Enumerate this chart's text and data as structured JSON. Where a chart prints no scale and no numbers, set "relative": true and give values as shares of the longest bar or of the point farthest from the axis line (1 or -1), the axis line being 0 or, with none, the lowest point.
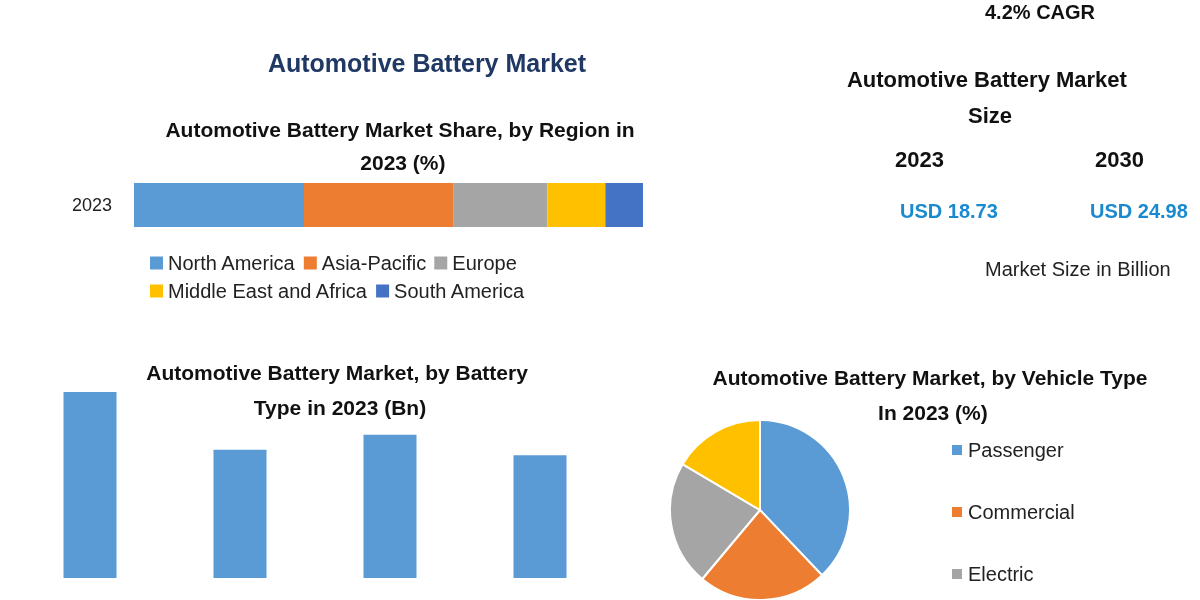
{
  "chart_data": [
    {
      "type": "bar",
      "title": "Automotive Battery Market",
      "subtitle": "Automotive Battery Market Share, by Region in 2023 (%)",
      "orientation": "horizontal",
      "stacked": true,
      "relative": true,
      "categories": [
        "2023"
      ],
      "legend": "bottom",
      "series": [
        {
          "name": "North America",
          "color": "#5b9bd5",
          "values": [
            0.334
          ]
        },
        {
          "name": "Asia-Pacific",
          "color": "#ed7d31",
          "values": [
            0.293
          ]
        },
        {
          "name": "Europe",
          "color": "#a5a5a5",
          "values": [
            0.185
          ]
        },
        {
          "name": "Middle East and Africa",
          "color": "#ffc000",
          "values": [
            0.114
          ]
        },
        {
          "name": "South America",
          "color": "#4472c4",
          "values": [
            0.074
          ]
        }
      ]
    },
    {
      "type": "other",
      "title": "Automotive Battery Market Size",
      "annotations": [
        "4.2% CAGR",
        "2023",
        "2030",
        "USD 18.73",
        "USD 24.98",
        "Market Size in Billion"
      ]
    },
    {
      "type": "bar",
      "title": "Automotive Battery Market, by Battery Type in 2023 (Bn)",
      "relative": true,
      "categories": [
        null,
        null,
        null,
        null
      ],
      "values": [
        1,
        0.69,
        0.77,
        0.66
      ],
      "color": "#5b9bd5"
    },
    {
      "type": "pie",
      "title": "Automotive Battery Market, by Vehicle Type In 2023 (%)",
      "categories": [
        "Passenger",
        "Commercial",
        "Electric",
        null
      ],
      "values": [
        37.9,
        23.2,
        22.4,
        16.5
      ],
      "colors": [
        "#5b9bd5",
        "#ed7d31",
        "#a5a5a5",
        "#ffc000"
      ],
      "legend": "right"
    }
  ]
}
